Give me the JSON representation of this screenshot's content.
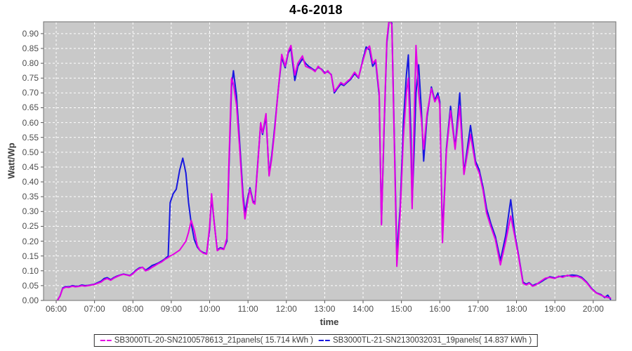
{
  "title": "4-6-2018",
  "axes": {
    "y_label": "Watt/Wp",
    "x_label": "time",
    "y_ticks": [
      "0.00",
      "0.05",
      "0.10",
      "0.15",
      "0.20",
      "0.25",
      "0.30",
      "0.35",
      "0.40",
      "0.45",
      "0.50",
      "0.55",
      "0.60",
      "0.65",
      "0.70",
      "0.75",
      "0.80",
      "0.85",
      "0.90"
    ],
    "x_ticks": [
      "06:00",
      "07:00",
      "08:00",
      "09:00",
      "10:00",
      "11:00",
      "12:00",
      "13:00",
      "14:00",
      "15:00",
      "16:00",
      "17:00",
      "18:00",
      "19:00",
      "20:00"
    ]
  },
  "colors": {
    "magenta_series": "#e400e4",
    "blue_series": "#1818e0",
    "plot_background": "#c9c9c9",
    "gridline": "#ffffff",
    "plot_border": "#707070",
    "tick_text": "#4d4d4d"
  },
  "legend": {
    "items_from_series": true
  },
  "chart_data": {
    "type": "line",
    "title": "4-6-2018",
    "xlabel": "time",
    "ylabel": "Watt/Wp",
    "x_axis_hours": [
      6,
      7,
      8,
      9,
      10,
      11,
      12,
      13,
      14,
      15,
      16,
      17,
      18,
      19,
      20
    ],
    "x_range_hours": [
      5.67,
      20.59
    ],
    "ylim": [
      0,
      0.94
    ],
    "y_tick_step": 0.05,
    "grid": true,
    "grid_style": "white dashed on gray",
    "legend_position": "bottom-center",
    "x_hours": [
      6.03,
      6.1,
      6.17,
      6.25,
      6.33,
      6.42,
      6.5,
      6.58,
      6.67,
      6.75,
      6.83,
      6.92,
      7.0,
      7.08,
      7.17,
      7.25,
      7.33,
      7.42,
      7.5,
      7.58,
      7.67,
      7.75,
      7.83,
      7.92,
      8.0,
      8.08,
      8.17,
      8.25,
      8.33,
      8.42,
      8.5,
      8.58,
      8.67,
      8.75,
      8.83,
      8.92,
      8.97,
      9.05,
      9.13,
      9.22,
      9.3,
      9.38,
      9.45,
      9.52,
      9.6,
      9.68,
      9.75,
      9.83,
      9.92,
      10.0,
      10.05,
      10.13,
      10.2,
      10.28,
      10.37,
      10.45,
      10.5,
      10.57,
      10.62,
      10.7,
      10.78,
      10.87,
      10.92,
      11.0,
      11.05,
      11.13,
      11.18,
      11.25,
      11.33,
      11.38,
      11.47,
      11.55,
      11.62,
      11.7,
      11.78,
      11.88,
      11.97,
      12.05,
      12.12,
      12.22,
      12.3,
      12.42,
      12.5,
      12.58,
      12.67,
      12.75,
      12.83,
      12.92,
      13.0,
      13.08,
      13.17,
      13.25,
      13.33,
      13.42,
      13.5,
      13.58,
      13.67,
      13.78,
      13.88,
      14.0,
      14.08,
      14.17,
      14.25,
      14.33,
      14.42,
      14.48,
      14.55,
      14.62,
      14.68,
      14.75,
      14.82,
      14.88,
      14.97,
      15.05,
      15.13,
      15.18,
      15.25,
      15.28,
      15.33,
      15.38,
      15.45,
      15.52,
      15.58,
      15.67,
      15.78,
      15.87,
      15.95,
      16.0,
      16.07,
      16.17,
      16.28,
      16.4,
      16.52,
      16.63,
      16.8,
      16.93,
      17.03,
      17.13,
      17.22,
      17.33,
      17.45,
      17.58,
      17.72,
      17.85,
      17.95,
      18.05,
      18.17,
      18.25,
      18.33,
      18.42,
      18.5,
      18.58,
      18.67,
      18.75,
      18.87,
      19.0,
      19.1,
      19.2,
      19.33,
      19.45,
      19.58,
      19.7,
      19.83,
      19.95,
      20.08,
      20.2,
      20.3,
      20.38,
      20.45
    ],
    "series": [
      {
        "name": "SB3000TL-20-SN2100578613_21panels( 15.714 kWh )",
        "color": "#e400e4",
        "values": [
          0.0,
          0.015,
          0.04,
          0.045,
          0.044,
          0.048,
          0.046,
          0.047,
          0.05,
          0.048,
          0.05,
          0.052,
          0.054,
          0.058,
          0.062,
          0.07,
          0.074,
          0.068,
          0.075,
          0.08,
          0.085,
          0.088,
          0.086,
          0.083,
          0.09,
          0.1,
          0.108,
          0.112,
          0.1,
          0.105,
          0.112,
          0.118,
          0.125,
          0.13,
          0.138,
          0.145,
          0.15,
          0.155,
          0.162,
          0.17,
          0.185,
          0.2,
          0.23,
          0.27,
          0.235,
          0.185,
          0.168,
          0.16,
          0.156,
          0.25,
          0.36,
          0.25,
          0.168,
          0.175,
          0.172,
          0.21,
          0.45,
          0.75,
          0.73,
          0.66,
          0.52,
          0.34,
          0.275,
          0.34,
          0.375,
          0.33,
          0.325,
          0.45,
          0.6,
          0.565,
          0.63,
          0.42,
          0.48,
          0.58,
          0.7,
          0.83,
          0.79,
          0.84,
          0.86,
          0.76,
          0.8,
          0.825,
          0.79,
          0.785,
          0.78,
          0.772,
          0.79,
          0.778,
          0.765,
          0.775,
          0.76,
          0.705,
          0.718,
          0.735,
          0.728,
          0.738,
          0.748,
          0.77,
          0.752,
          0.81,
          0.845,
          0.858,
          0.8,
          0.812,
          0.7,
          0.255,
          0.6,
          0.88,
          0.95,
          0.93,
          0.5,
          0.115,
          0.3,
          0.55,
          0.7,
          0.75,
          0.48,
          0.31,
          0.6,
          0.86,
          0.7,
          0.61,
          0.51,
          0.63,
          0.715,
          0.67,
          0.69,
          0.66,
          0.195,
          0.5,
          0.64,
          0.51,
          0.655,
          0.425,
          0.56,
          0.46,
          0.43,
          0.37,
          0.295,
          0.25,
          0.205,
          0.12,
          0.2,
          0.285,
          0.22,
          0.15,
          0.058,
          0.052,
          0.058,
          0.048,
          0.052,
          0.06,
          0.068,
          0.075,
          0.078,
          0.074,
          0.082,
          0.078,
          0.085,
          0.08,
          0.082,
          0.075,
          0.06,
          0.04,
          0.025,
          0.018,
          0.012,
          0.01,
          0.008
        ]
      },
      {
        "name": "SB3000TL-21-SN2130032031_19panels( 14.837 kWh )",
        "color": "#1818e0",
        "values": [
          0.0,
          0.015,
          0.042,
          0.047,
          0.046,
          0.05,
          0.048,
          0.048,
          0.052,
          0.05,
          0.051,
          0.053,
          0.055,
          0.06,
          0.065,
          0.074,
          0.077,
          0.07,
          0.077,
          0.082,
          0.086,
          0.089,
          0.087,
          0.084,
          0.092,
          0.102,
          0.11,
          0.112,
          0.102,
          0.11,
          0.118,
          0.122,
          0.127,
          0.133,
          0.14,
          0.15,
          0.33,
          0.36,
          0.375,
          0.44,
          0.48,
          0.43,
          0.33,
          0.26,
          0.205,
          0.18,
          0.168,
          0.162,
          0.158,
          0.24,
          0.35,
          0.25,
          0.17,
          0.178,
          0.174,
          0.2,
          0.43,
          0.72,
          0.775,
          0.69,
          0.54,
          0.36,
          0.295,
          0.35,
          0.38,
          0.335,
          0.33,
          0.455,
          0.595,
          0.56,
          0.62,
          0.425,
          0.49,
          0.59,
          0.7,
          0.82,
          0.785,
          0.835,
          0.85,
          0.742,
          0.79,
          0.815,
          0.8,
          0.79,
          0.782,
          0.775,
          0.786,
          0.78,
          0.768,
          0.772,
          0.762,
          0.7,
          0.715,
          0.73,
          0.725,
          0.735,
          0.745,
          0.765,
          0.75,
          0.815,
          0.855,
          0.845,
          0.79,
          0.805,
          0.69,
          0.26,
          0.59,
          0.87,
          0.945,
          0.935,
          0.52,
          0.15,
          0.32,
          0.6,
          0.76,
          0.828,
          0.55,
          0.33,
          0.5,
          0.7,
          0.795,
          0.64,
          0.47,
          0.62,
          0.72,
          0.675,
          0.7,
          0.67,
          0.21,
          0.51,
          0.655,
          0.515,
          0.7,
          0.43,
          0.59,
          0.47,
          0.44,
          0.38,
          0.31,
          0.26,
          0.215,
          0.135,
          0.22,
          0.34,
          0.23,
          0.155,
          0.062,
          0.055,
          0.06,
          0.05,
          0.055,
          0.058,
          0.065,
          0.072,
          0.08,
          0.076,
          0.08,
          0.082,
          0.083,
          0.086,
          0.084,
          0.078,
          0.062,
          0.042,
          0.026,
          0.02,
          0.01,
          0.018,
          0.004
        ]
      }
    ]
  }
}
